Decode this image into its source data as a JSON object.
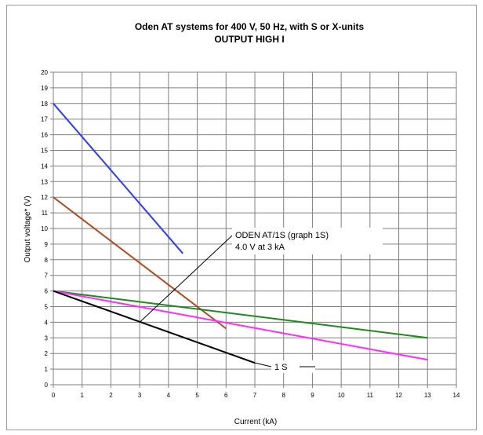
{
  "chart_data": {
    "type": "line",
    "title": "Oden AT systems for 400 V, 50 Hz, with S or X-units",
    "subtitle": "OUTPUT HIGH I",
    "xlabel": "Current (kA)",
    "ylabel": "Output voltage* (V)",
    "xlim": [
      0,
      14
    ],
    "ylim": [
      0,
      20
    ],
    "x_ticks": [
      "0",
      "1",
      "2",
      "3",
      "4",
      "5",
      "6",
      "7",
      "8",
      "9",
      "10",
      "11",
      "12",
      "13",
      "14"
    ],
    "y_ticks": [
      "0",
      "1",
      "2",
      "3",
      "4",
      "5",
      "6",
      "7",
      "8",
      "9",
      "10",
      "11",
      "12",
      "13",
      "14",
      "15",
      "16",
      "17",
      "18",
      "19",
      "20"
    ],
    "grid": true,
    "series": [
      {
        "color": "#2b3cff",
        "points": [
          [
            0,
            18
          ],
          [
            4.5,
            8.4
          ]
        ]
      },
      {
        "color": "#b04a1c",
        "points": [
          [
            0,
            12
          ],
          [
            6,
            3.6
          ]
        ]
      },
      {
        "color": "#1d8a1d",
        "points": [
          [
            0,
            6
          ],
          [
            13,
            3
          ]
        ]
      },
      {
        "color": "#ff2bff",
        "points": [
          [
            0,
            6
          ],
          [
            13,
            1.6
          ]
        ]
      },
      {
        "color": "#000000",
        "points": [
          [
            0,
            6
          ],
          [
            7,
            1.4
          ]
        ]
      }
    ],
    "annotations": [
      {
        "id": "odenat1s",
        "lines": [
          "ODEN AT/1S (graph 1S)",
          "4.0 V at 3 kA"
        ],
        "pointer": [
          3,
          4.0
        ]
      },
      {
        "id": "label1s",
        "lines": [
          "1 S"
        ],
        "pointer": [
          7,
          1.4
        ]
      }
    ]
  }
}
